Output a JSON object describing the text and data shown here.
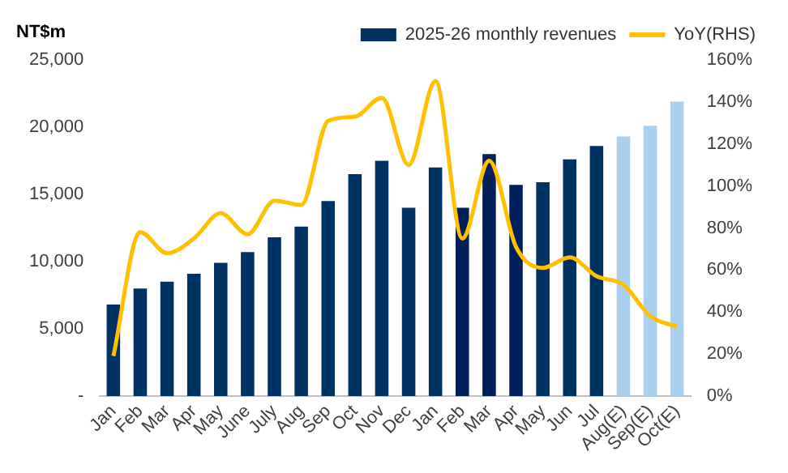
{
  "chart_data": {
    "type": "bar",
    "ylabel": "NT$m",
    "categories": [
      "Jan",
      "Feb",
      "Mar",
      "Apr",
      "May",
      "June",
      "July",
      "Aug",
      "Sep",
      "Oct",
      "Nov",
      "Dec",
      "Jan",
      "Feb",
      "Mar",
      "Apr",
      "May",
      "Jun",
      "Jul",
      "Aug(E)",
      "Sep(E)",
      "Oct(E)"
    ],
    "series": [
      {
        "name": "2025-26 monthly revenues",
        "color": "#003263",
        "colors": [
          "#003263",
          "#003263",
          "#003263",
          "#003263",
          "#003263",
          "#003263",
          "#003263",
          "#003263",
          "#003263",
          "#003263",
          "#003263",
          "#003263",
          "#003263",
          "#001f5b",
          "#001f5b",
          "#001f5b",
          "#003263",
          "#003263",
          "#003263",
          "#a9d0ee",
          "#a9d0ee",
          "#a9d0ee"
        ],
        "values": [
          6800,
          8000,
          8500,
          9100,
          9900,
          10700,
          11800,
          12600,
          14500,
          16500,
          17500,
          14000,
          17000,
          14000,
          18000,
          15700,
          15900,
          17600,
          18600,
          19300,
          20100,
          21900
        ]
      },
      {
        "name": "YoY(RHS)",
        "type": "line",
        "axis": "y2",
        "color": "#ffc000",
        "values": [
          19,
          78,
          68,
          75,
          87,
          77,
          93,
          91,
          131,
          133,
          142,
          110,
          150,
          75,
          112,
          71,
          61,
          66,
          57,
          53,
          38,
          33
        ]
      }
    ],
    "ylim": [
      0,
      25000
    ],
    "yticks": [
      {
        "value": 0,
        "label": "-"
      },
      {
        "value": 5000,
        "label": "5,000"
      },
      {
        "value": 10000,
        "label": "10,000"
      },
      {
        "value": 15000,
        "label": "15,000"
      },
      {
        "value": 20000,
        "label": "20,000"
      },
      {
        "value": 25000,
        "label": "25,000"
      }
    ],
    "y2lim": [
      0,
      160
    ],
    "y2ticks": [
      {
        "value": 0,
        "label": "0%"
      },
      {
        "value": 20,
        "label": "20%"
      },
      {
        "value": 40,
        "label": "40%"
      },
      {
        "value": 60,
        "label": "60%"
      },
      {
        "value": 80,
        "label": "80%"
      },
      {
        "value": 100,
        "label": "100%"
      },
      {
        "value": 120,
        "label": "120%"
      },
      {
        "value": 140,
        "label": "140%"
      },
      {
        "value": 160,
        "label": "160%"
      }
    ],
    "grid": false,
    "legend": "top",
    "marker": "none"
  }
}
